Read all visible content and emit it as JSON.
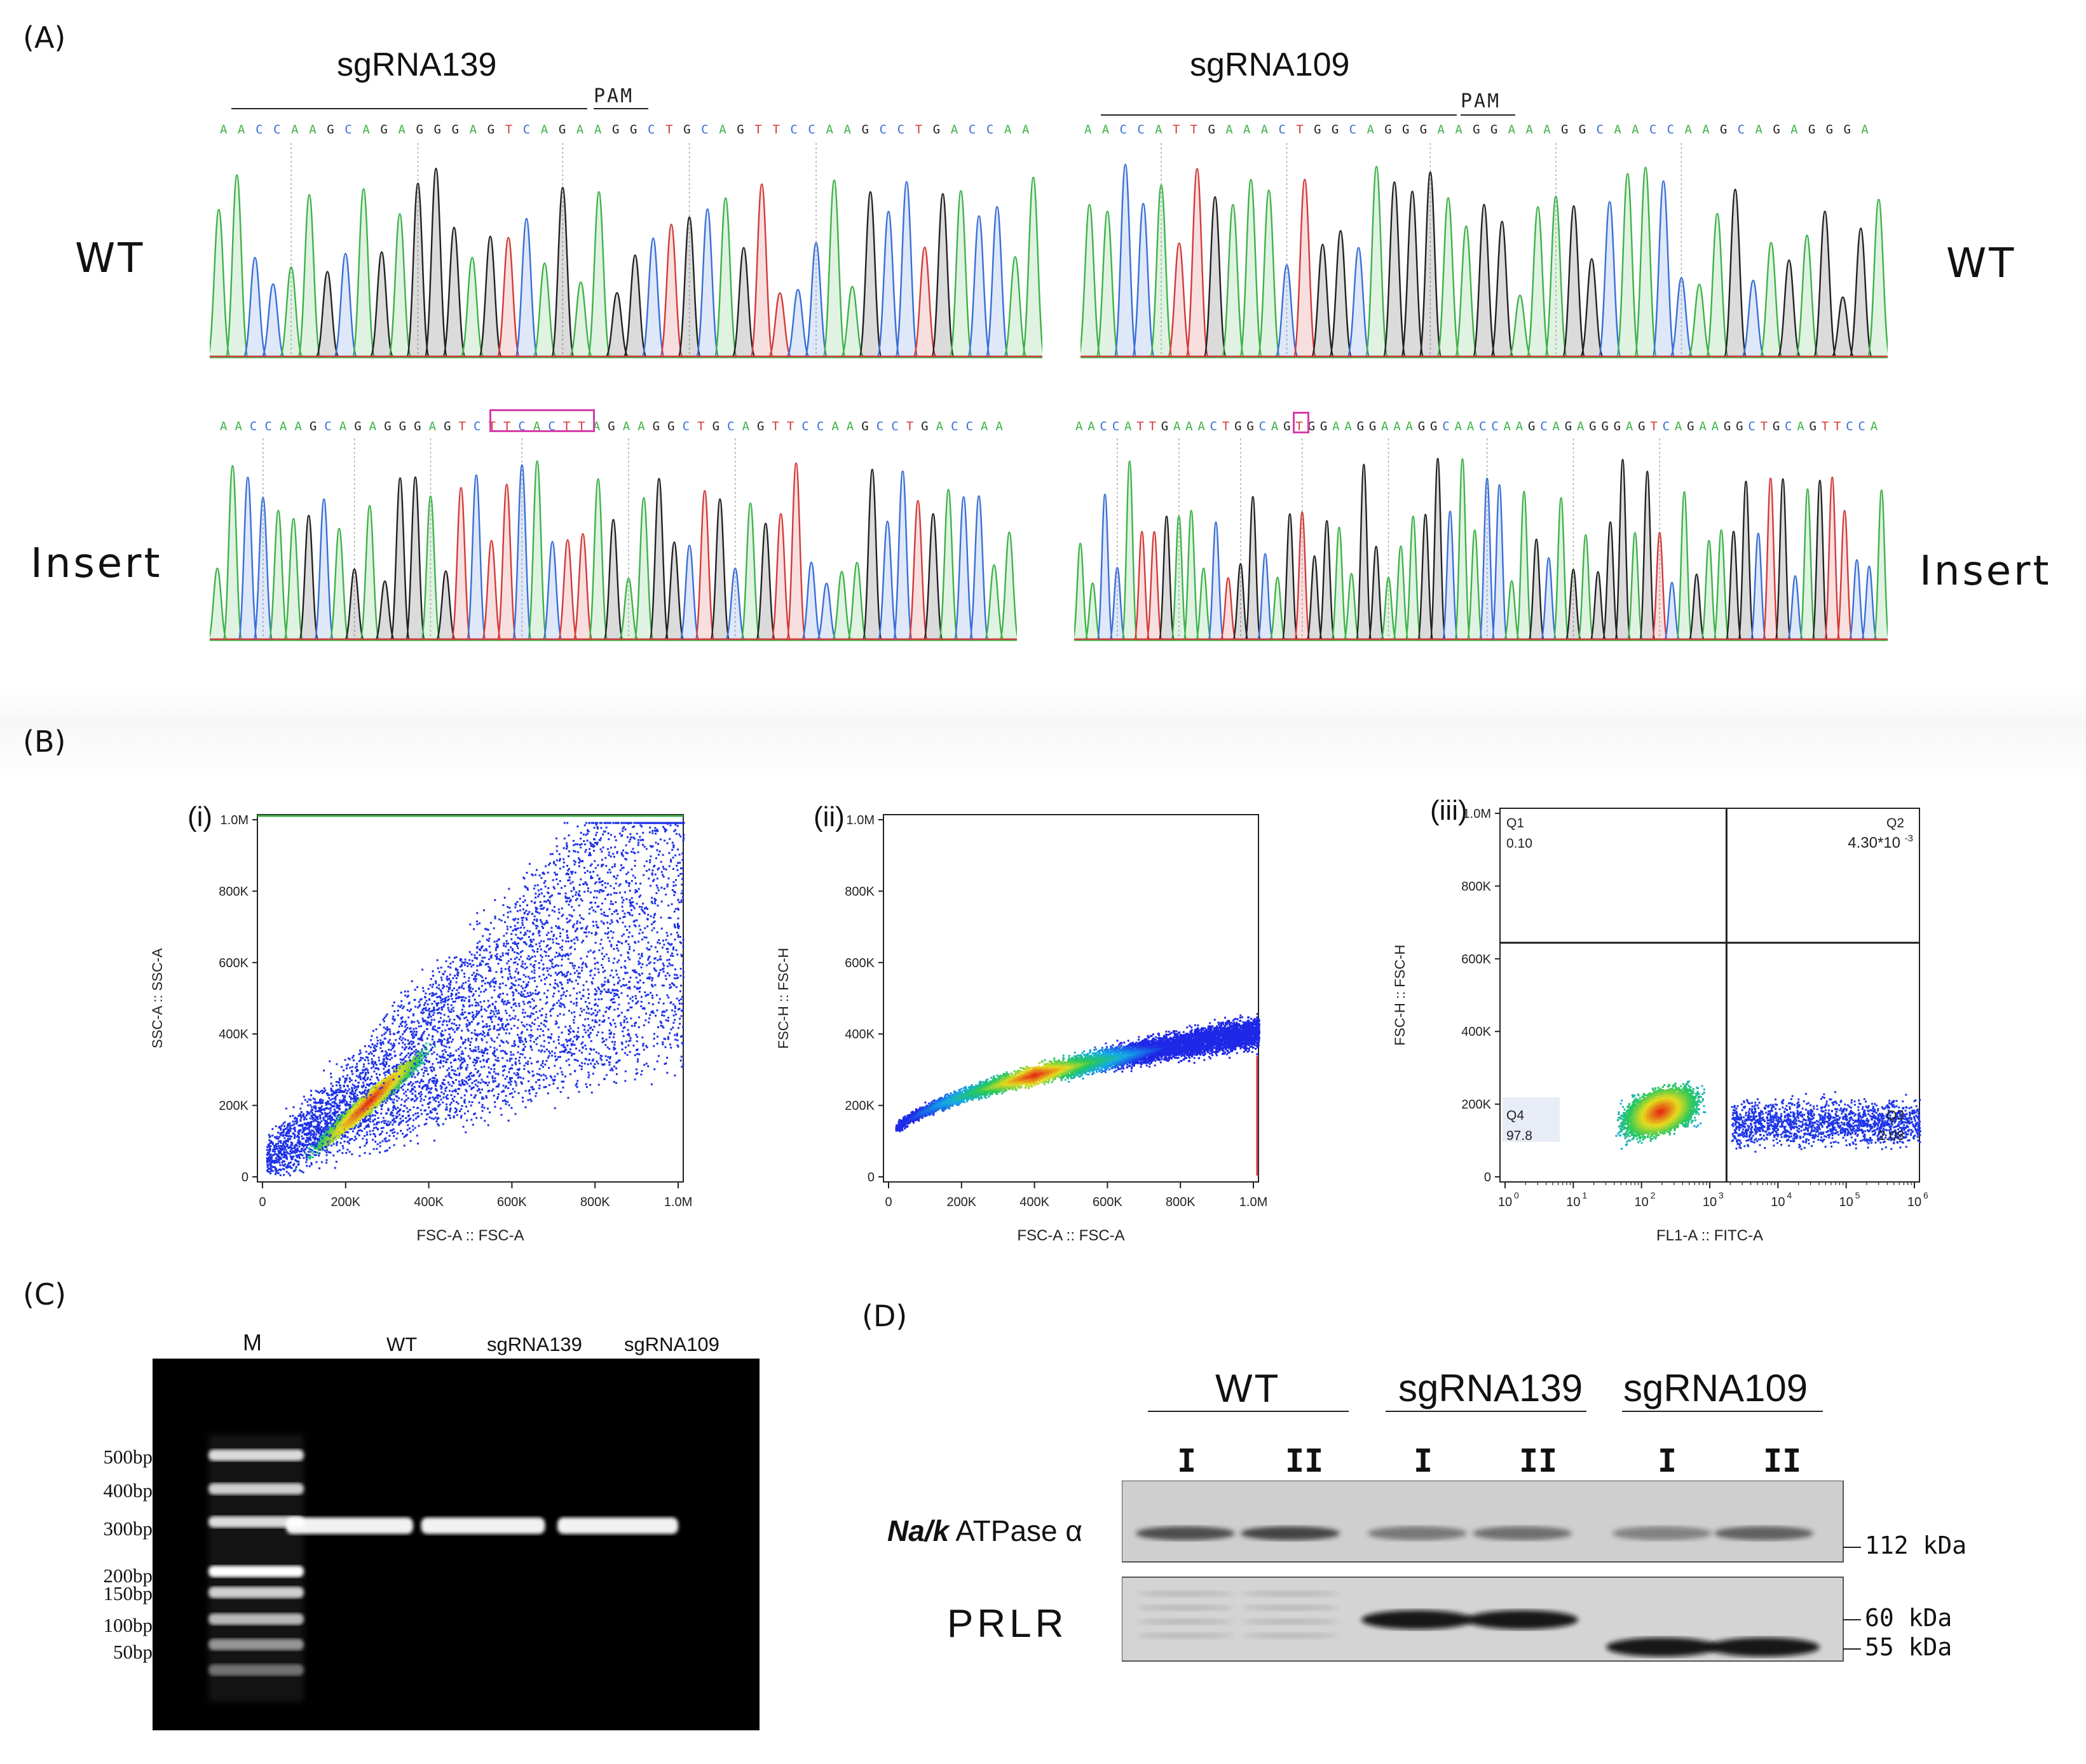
{
  "panelA": {
    "label": "(A)",
    "left": {
      "title": "sgRNA139",
      "pam": "PAM",
      "wt_seq": "AACCAAGCAGAGGGAGTCAGAAGGCTGCAGTTCCAAGCCTGACCAA",
      "ins_seq": "AACCAAGCAGAGGGAGTCTTCACTTAGAAGGCTGCAGTTCCAAGCCTGACCAA",
      "ins_highlight": "TTCACTT"
    },
    "right": {
      "title": "sgRNA109",
      "pam": "PAM",
      "wt_seq": "AACCATTGAAACTGGCAGGGAAGGAAAGGCAACCAAGCAGAGGGA",
      "ins_seq": "AACCATTGAAACTGGCAGTGGAAGGAAAGGCAACCAAGCAGAGGGAGTCAGAAGGCTGCAGTTCCA",
      "ins_highlight": "T"
    },
    "row_wt_left": "WT",
    "row_ins_left": "Insert",
    "row_wt_right": "WT",
    "row_ins_right": "Insert",
    "base_colors": {
      "A": "#3fb24a",
      "C": "#3a6fd6",
      "G": "#222222",
      "T": "#d23b3b"
    }
  },
  "panelB": {
    "label": "(B)",
    "plots": [
      {
        "tag": "(i)",
        "xlabel": "FSC-A :: FSC-A",
        "ylabel": "SSC-A :: SSC-A",
        "yticks": [
          "1.0M",
          "800K",
          "600K",
          "400K",
          "200K",
          "0"
        ],
        "xticks": [
          "0",
          "200K",
          "400K",
          "600K",
          "800K",
          "1.0M"
        ]
      },
      {
        "tag": "(ii)",
        "xlabel": "FSC-A :: FSC-A",
        "ylabel": "FSC-H :: FSC-H",
        "yticks": [
          "1.0M",
          "800K",
          "600K",
          "400K",
          "200K",
          "0"
        ],
        "xticks": [
          "0",
          "200K",
          "400K",
          "600K",
          "800K",
          "1.0M"
        ]
      },
      {
        "tag": "(iii)",
        "xlabel": "FL1-A :: FITC-A",
        "ylabel": "FSC-H :: FSC-H",
        "yticks": [
          "1.0M",
          "800K",
          "600K",
          "400K",
          "200K",
          "0"
        ],
        "xticks": [
          "10",
          "10",
          "10",
          "10",
          "10",
          "10",
          "10"
        ],
        "xtick_exp": [
          "0",
          "1",
          "2",
          "3",
          "4",
          "5",
          "6"
        ],
        "quadrants": {
          "Q1": {
            "name": "Q1",
            "value": "0.10"
          },
          "Q2": {
            "name": "Q2",
            "value": "4.30*10",
            "exp": "-3"
          },
          "Q3": {
            "name": "Q3",
            "value": "2.08"
          },
          "Q4": {
            "name": "Q4",
            "value": "97.8"
          }
        }
      }
    ]
  },
  "panelC": {
    "label": "(C)",
    "lanes": [
      "M",
      "WT",
      "sgRNA139",
      "sgRNA109"
    ],
    "ladder": [
      "500bp",
      "400bp",
      "300bp",
      "200bp",
      "150bp",
      "100bp",
      "50bp"
    ]
  },
  "panelD": {
    "label": "(D)",
    "groups": [
      "WT",
      "sgRNA139",
      "sgRNA109"
    ],
    "lanes": [
      "I",
      "II",
      "I",
      "II",
      "I",
      "II"
    ],
    "row1_label_italic": "Na/k",
    "row1_label_rest": " ATPase α",
    "row2_label": "PRLR",
    "markers": [
      "112 kDa",
      "60 kDa",
      "55 kDa"
    ]
  }
}
